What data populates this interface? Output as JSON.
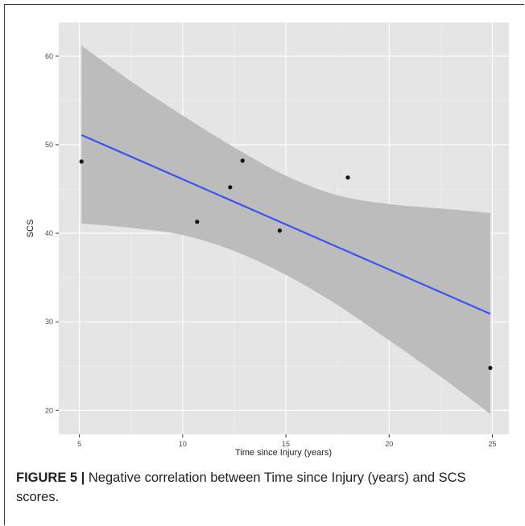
{
  "chart_data": {
    "type": "scatter",
    "xlabel": "Time since Injury (years)",
    "ylabel": "SCS",
    "xlim": [
      4.0,
      25.8
    ],
    "ylim": [
      17.3,
      63.8
    ],
    "xticks": [
      5,
      10,
      15,
      20,
      25
    ],
    "yticks": [
      20,
      30,
      40,
      50,
      60
    ],
    "grid": true,
    "points": [
      {
        "x": 5.1,
        "y": 48.1
      },
      {
        "x": 10.7,
        "y": 41.3
      },
      {
        "x": 12.3,
        "y": 45.2
      },
      {
        "x": 12.9,
        "y": 48.2
      },
      {
        "x": 14.7,
        "y": 40.3
      },
      {
        "x": 18.0,
        "y": 46.3
      },
      {
        "x": 24.9,
        "y": 24.8
      }
    ],
    "fit_line": {
      "x": [
        5.1,
        24.9
      ],
      "y": [
        51.1,
        30.9
      ]
    },
    "confidence_band": {
      "x": [
        5.1,
        7.6,
        10.0,
        12.5,
        15.0,
        17.5,
        20.0,
        22.5,
        24.9
      ],
      "upper": [
        61.2,
        57.0,
        53.3,
        49.7,
        46.5,
        44.3,
        43.3,
        42.8,
        42.3
      ],
      "lower": [
        41.1,
        40.6,
        39.8,
        38.0,
        35.3,
        31.9,
        27.9,
        23.8,
        19.6
      ]
    },
    "colors": {
      "panel": "#e5e5e5",
      "grid_major": "#ffffff",
      "grid_minor": "#f0f0f0",
      "band": "#bcbcbc",
      "line": "#3b54f0",
      "point": "#111111"
    }
  },
  "caption": {
    "label": "FIGURE 5 |",
    "text": " Negative correlation between Time since Injury (years) and SCS scores."
  }
}
